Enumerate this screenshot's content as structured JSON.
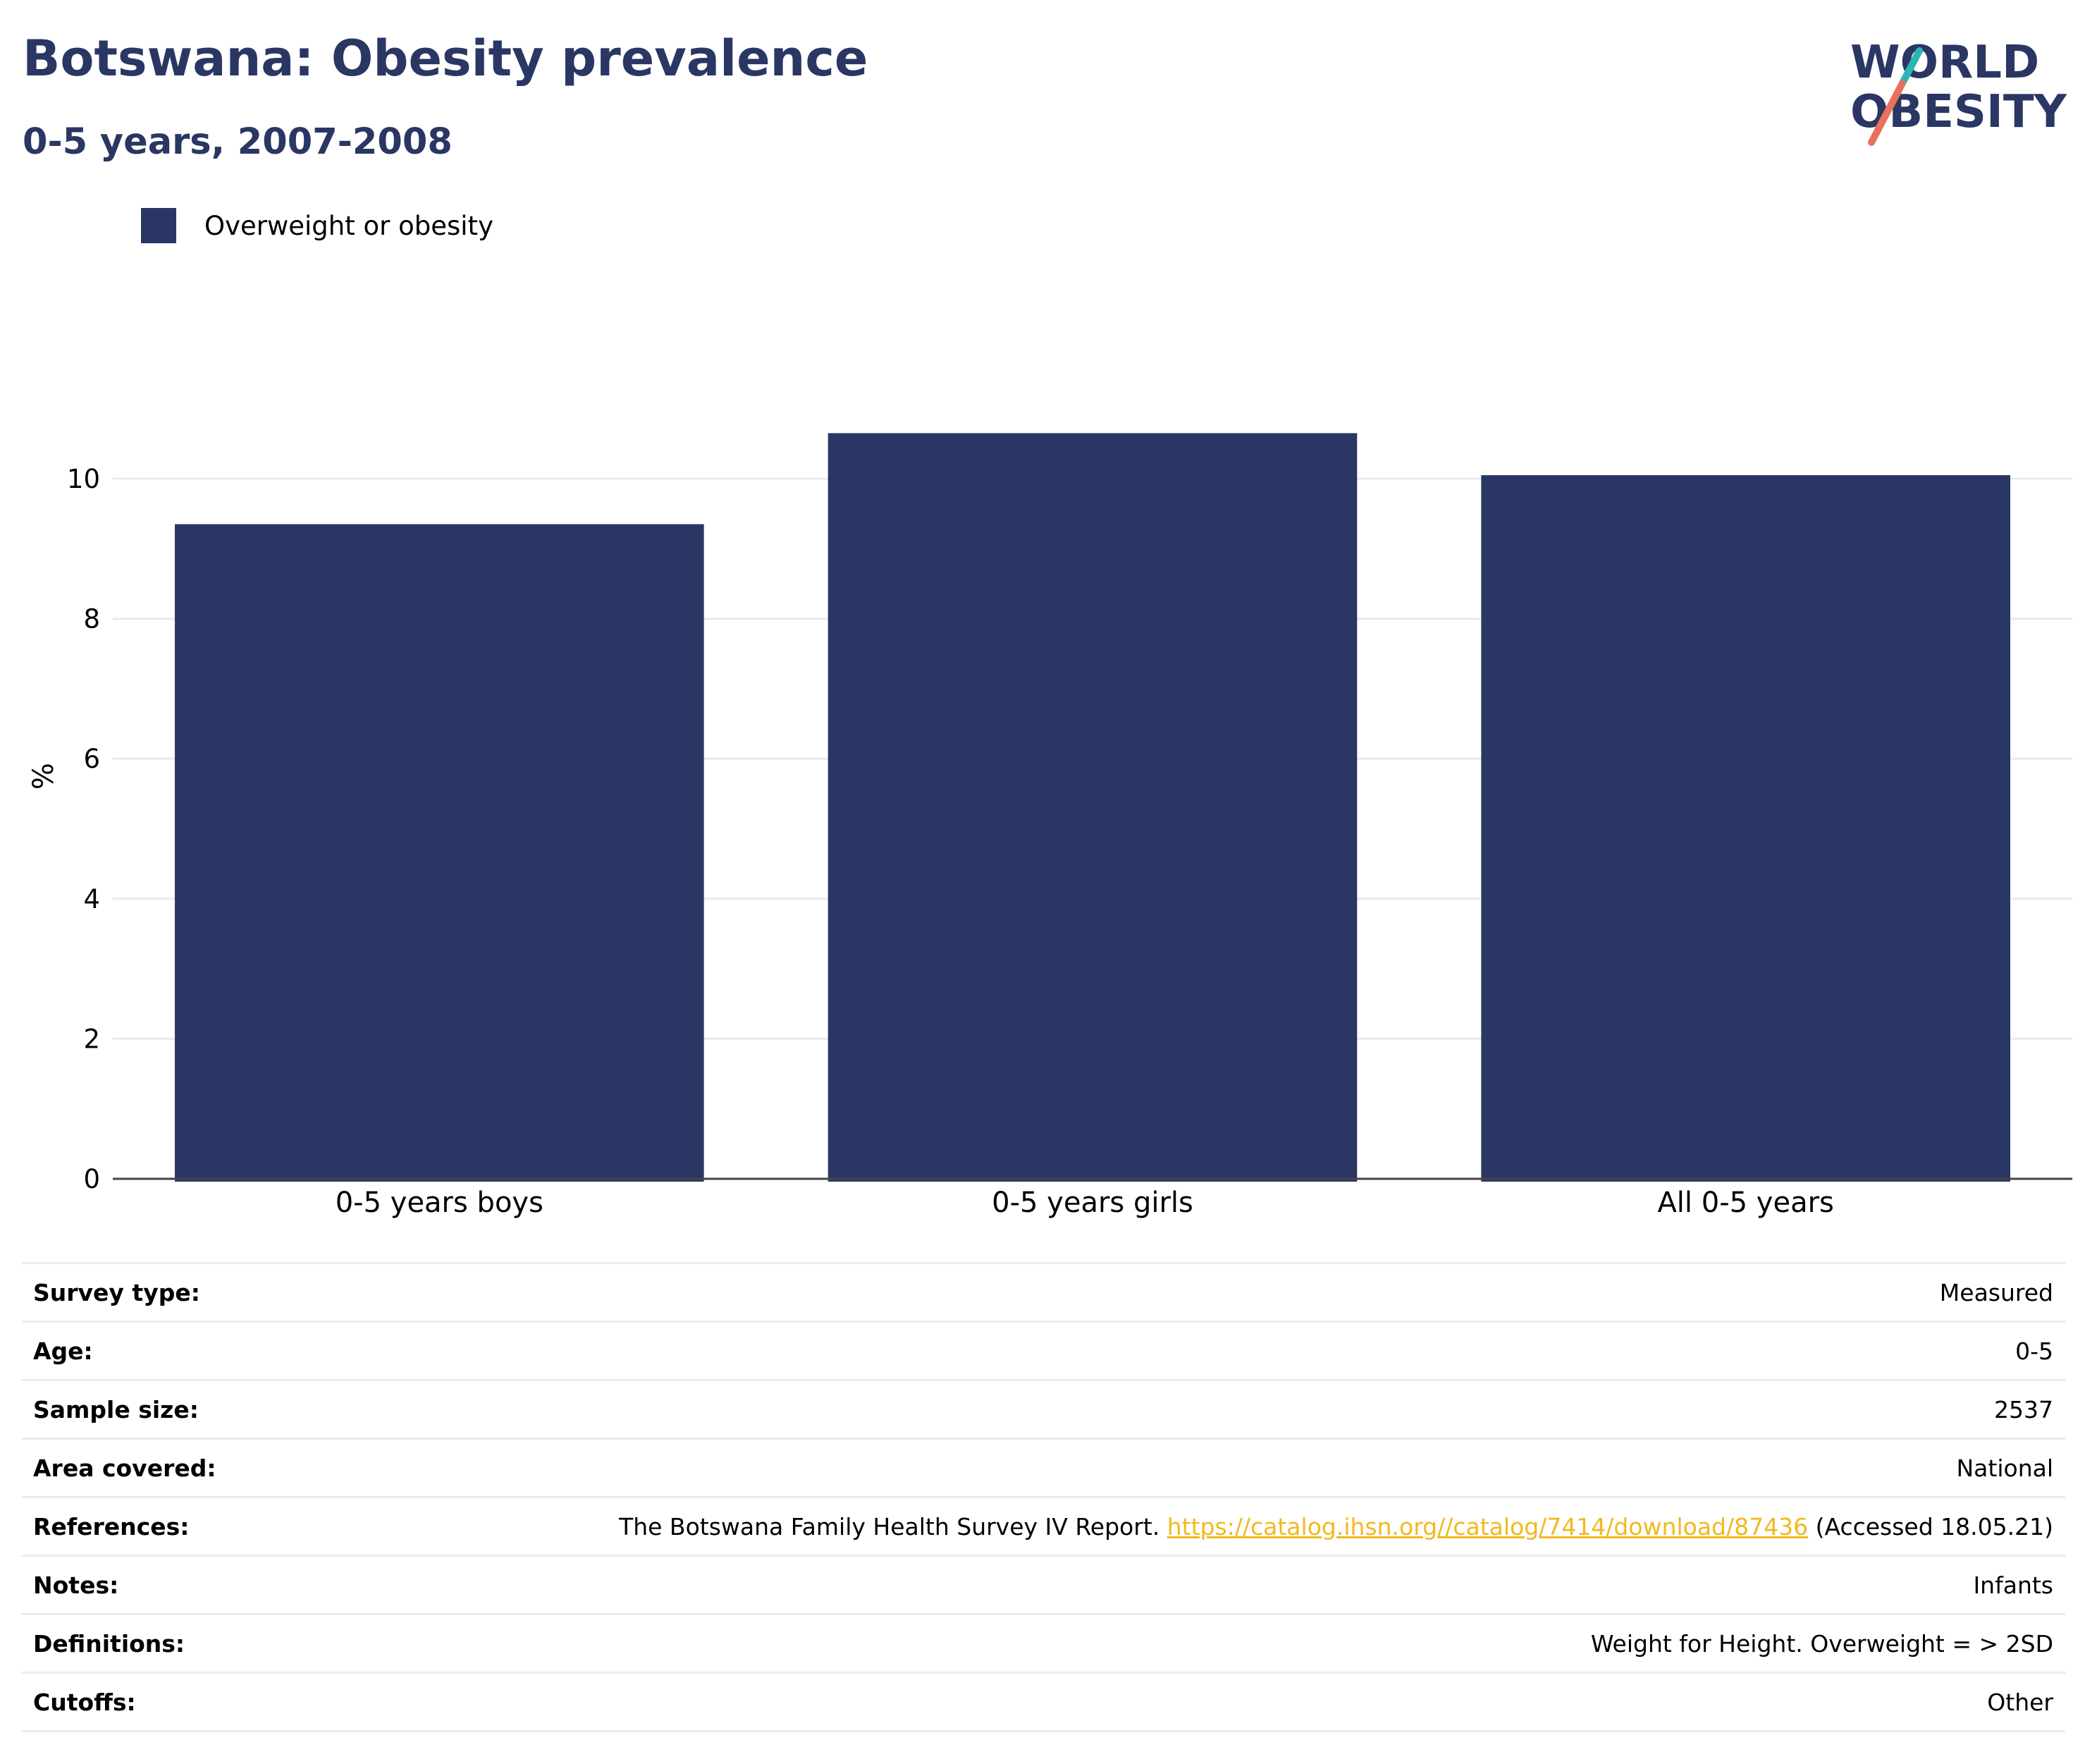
{
  "title": "Botswana: Obesity prevalence",
  "subtitle": "0-5 years, 2007-2008",
  "logo": {
    "line1": "WORLD",
    "line2": "OBESITY"
  },
  "colors": {
    "bar": "#2a3663",
    "text": "#2a3663",
    "link": "#f1b91e",
    "accent_teal": "#2bb7b1",
    "accent_coral": "#e8715e"
  },
  "chart_data": {
    "type": "bar",
    "categories": [
      "0-5 years boys",
      "0-5 years girls",
      "All 0-5 years"
    ],
    "series": [
      {
        "name": "Overweight or obesity",
        "values": [
          9.35,
          10.65,
          10.05
        ]
      }
    ],
    "ylabel": "%",
    "xlabel": "",
    "ylim": [
      0,
      11.5
    ],
    "yticks": [
      0,
      2,
      4,
      6,
      8,
      10
    ],
    "grid": true,
    "legend": "top-left"
  },
  "info": {
    "survey_type": {
      "label": "Survey type:",
      "value": "Measured"
    },
    "age": {
      "label": "Age:",
      "value": "0-5"
    },
    "sample_size": {
      "label": "Sample size:",
      "value": "2537"
    },
    "area_covered": {
      "label": "Area covered:",
      "value": "National"
    },
    "references": {
      "label": "References:",
      "text_before": "The Botswana Family Health Survey IV Report. ",
      "link": "https://catalog.ihsn.org//catalog/7414/download/87436",
      "text_after": " (Accessed 18.05.21)"
    },
    "notes": {
      "label": "Notes:",
      "value": "Infants"
    },
    "definitions": {
      "label": "Definitions:",
      "value": "Weight for Height. Overweight = > 2SD"
    },
    "cutoffs": {
      "label": "Cutoffs:",
      "value": "Other"
    }
  }
}
